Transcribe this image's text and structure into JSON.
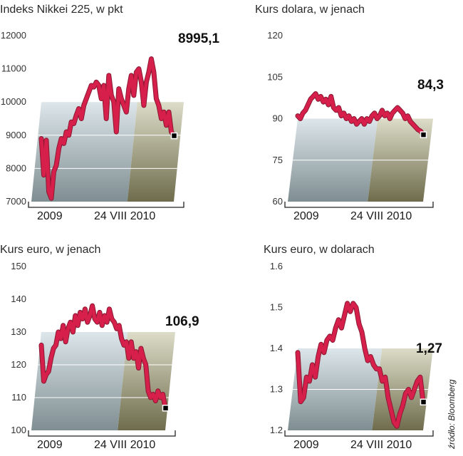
{
  "source": "źródło: Bloomberg",
  "colors": {
    "line": "#d61f4b",
    "line_dark": "#8a1a33",
    "panel_left_top": "#dde6ea",
    "panel_left_bottom": "#7f8e92",
    "panel_right_top": "#dcdcc8",
    "panel_right_bottom": "#6e6c4c",
    "grid": "#ffffff",
    "axis": "#222222",
    "marker": "#000000"
  },
  "chart_data": [
    {
      "type": "line",
      "title": "Indeks Nikkei 225, w pkt",
      "last_label": "8995,1",
      "yticks": [
        "12000",
        "11000",
        "10000",
        "9000",
        "8000",
        "7000"
      ],
      "ylim": [
        7000,
        12000
      ],
      "xlabels": [
        "2009",
        "24 VIII 2010"
      ],
      "values": [
        8900,
        7800,
        8850,
        7300,
        7100,
        7900,
        8100,
        8600,
        8900,
        8750,
        9100,
        9000,
        9400,
        9350,
        9600,
        9800,
        9500,
        9900,
        10100,
        10300,
        10500,
        10450,
        10600,
        10500,
        10100,
        10500,
        9500,
        10800,
        10200,
        10000,
        9100,
        10400,
        10100,
        9900,
        9700,
        10400,
        10800,
        10200,
        10900,
        11000,
        10600,
        9900,
        10600,
        10900,
        11300,
        10900,
        10100,
        9900,
        9500,
        9700,
        9300,
        9700,
        9100,
        8995
      ]
    },
    {
      "type": "line",
      "title": "Kurs dolara, w jenach",
      "last_label": "84,3",
      "yticks": [
        "120",
        "105",
        "90",
        "75",
        "60"
      ],
      "ylim": [
        60,
        120
      ],
      "xlabels": [
        "2009",
        "24 VIII 2010"
      ],
      "values": [
        91,
        90,
        92,
        93,
        95,
        97,
        98,
        99,
        97,
        98,
        96,
        97,
        95,
        98,
        94,
        93,
        94,
        91,
        92,
        90,
        91,
        89,
        90,
        88,
        89,
        90,
        88,
        90,
        89,
        91,
        92,
        90,
        91,
        93,
        91,
        92,
        90,
        92,
        93,
        94,
        93,
        92,
        90,
        91,
        89,
        88,
        87,
        86,
        85.5,
        84.3
      ]
    },
    {
      "type": "line",
      "title": "Kurs euro, w jenach",
      "last_label": "106,9",
      "yticks": [
        "150",
        "140",
        "130",
        "120",
        "110",
        "100"
      ],
      "ylim": [
        100,
        150
      ],
      "xlabels": [
        "2009",
        "24 VIII 2010"
      ],
      "values": [
        126,
        115,
        117,
        118,
        122,
        125,
        126,
        130,
        128,
        132,
        127,
        131,
        133,
        130,
        135,
        132,
        136,
        134,
        137,
        133,
        135,
        138,
        134,
        133,
        136,
        132,
        135,
        133,
        137,
        134,
        133,
        131,
        132,
        128,
        126,
        127,
        122,
        127,
        122,
        124,
        119,
        125,
        122,
        120,
        112,
        110,
        111,
        109,
        112,
        110,
        111,
        106.9
      ]
    },
    {
      "type": "line",
      "title": "Kurs euro, w dolarach",
      "last_label": "1,27",
      "yticks": [
        "1.6",
        "1.5",
        "1.4",
        "1.3",
        "1.2"
      ],
      "ylim": [
        1.2,
        1.6
      ],
      "xlabels": [
        "2009",
        "24 VIII 2010"
      ],
      "values": [
        1.39,
        1.27,
        1.28,
        1.33,
        1.32,
        1.36,
        1.33,
        1.38,
        1.41,
        1.39,
        1.42,
        1.43,
        1.42,
        1.45,
        1.47,
        1.45,
        1.48,
        1.51,
        1.49,
        1.51,
        1.5,
        1.46,
        1.44,
        1.4,
        1.37,
        1.38,
        1.36,
        1.35,
        1.35,
        1.32,
        1.33,
        1.28,
        1.25,
        1.22,
        1.21,
        1.24,
        1.26,
        1.29,
        1.3,
        1.28,
        1.3,
        1.32,
        1.33,
        1.27
      ]
    }
  ]
}
